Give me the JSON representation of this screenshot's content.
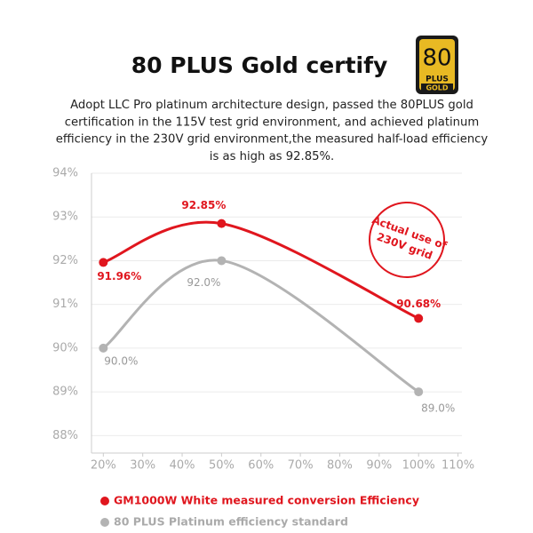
{
  "header": {
    "title": "80 PLUS Gold certify",
    "badge": {
      "number": "80",
      "plus": "PLUS",
      "grade": "GOLD"
    },
    "description": [
      "Adopt LLC Pro platinum architecture design, passed the 80PLUS gold",
      "certification in the 115V test grid environment, and achieved platinum",
      "efficiency in the 230V grid environment,the measured half-load efficiency",
      "is as high as 92.85%."
    ]
  },
  "chart_data": {
    "type": "line",
    "x": [
      20,
      50,
      100
    ],
    "series": [
      {
        "name": "GM1000W White measured conversion Efficiency",
        "color": "#e0161e",
        "values": [
          91.96,
          92.85,
          90.68
        ],
        "value_labels": [
          "91.96%",
          "92.85%",
          "90.68%"
        ]
      },
      {
        "name": "80 PLUS Platinum efficiency standard",
        "color": "#b3b3b3",
        "values": [
          90,
          92,
          89
        ],
        "value_labels": [
          "90.0%",
          "92.0%",
          "89.0%"
        ]
      }
    ],
    "xlim": [
      17,
      111
    ],
    "ylim": [
      87.6,
      94
    ],
    "xticks": [
      {
        "value": 20,
        "label": "20%"
      },
      {
        "value": 30,
        "label": "30%"
      },
      {
        "value": 40,
        "label": "40%"
      },
      {
        "value": 50,
        "label": "50%"
      },
      {
        "value": 60,
        "label": "60%"
      },
      {
        "value": 70,
        "label": "70%"
      },
      {
        "value": 80,
        "label": "80%"
      },
      {
        "value": 90,
        "label": "90%"
      },
      {
        "value": 100,
        "label": "100%"
      },
      {
        "value": 110,
        "label": "110%"
      }
    ],
    "yticks": [
      {
        "value": 88,
        "label": "88%"
      },
      {
        "value": 89,
        "label": "89%"
      },
      {
        "value": 90,
        "label": "90%"
      },
      {
        "value": 91,
        "label": "91%"
      },
      {
        "value": 92,
        "label": "92%"
      },
      {
        "value": 93,
        "label": "93%"
      },
      {
        "value": 94,
        "label": "94%"
      }
    ],
    "grid": true,
    "annotation": [
      "Actual use of",
      "230V grid"
    ]
  }
}
